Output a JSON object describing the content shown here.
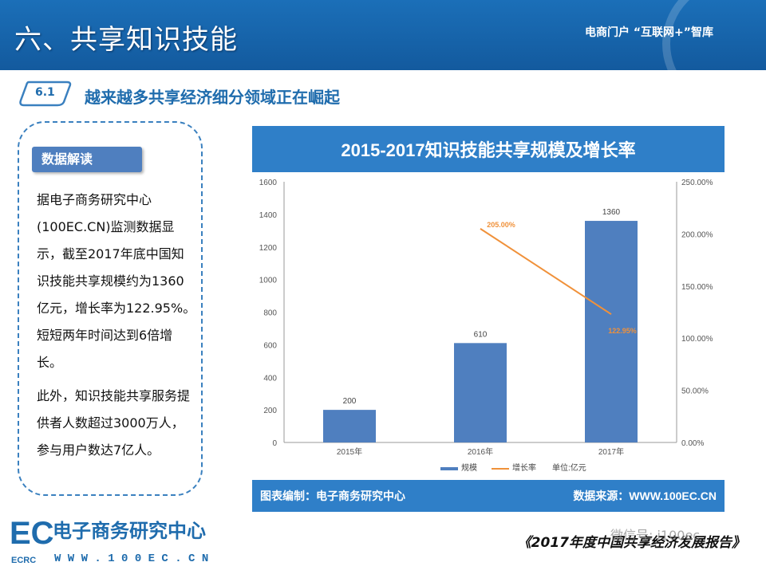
{
  "header": {
    "title": "六、共享知识技能",
    "brand": "电商门户 “互联网+”智库"
  },
  "section": {
    "badge": "6.1",
    "heading": "越来越多共享经济细分领域正在崛起"
  },
  "info": {
    "label": "数据解读",
    "paragraph1": "据电子商务研究中心(100EC.CN)监测数据显示，截至2017年底中国知识技能共享规模约为1360亿元，增长率为122.95%。短短两年时间达到6倍增长。",
    "paragraph2": "此外，知识技能共享服务提供者人数超过3000万人，参与用户数达7亿人。"
  },
  "colors": {
    "header": "#1b6fb8",
    "bar": "#4f7fbf",
    "line": "#f0913a",
    "banner": "#2f7fc8"
  },
  "chart_data": {
    "type": "bar",
    "title": "2015-2017知识技能共享规模及增长率",
    "categories": [
      "2015年",
      "2016年",
      "2017年"
    ],
    "series": [
      {
        "name": "规模",
        "type": "bar",
        "values": [
          200,
          610,
          1360
        ],
        "labels": [
          "200",
          "610",
          "1360"
        ],
        "axis": "left"
      },
      {
        "name": "增长率",
        "type": "line",
        "values": [
          null,
          205.0,
          122.95
        ],
        "labels": [
          "",
          "205.00%",
          "122.95%"
        ],
        "axis": "right"
      }
    ],
    "ylim": [
      0,
      1600
    ],
    "yticks": [
      "0",
      "200",
      "400",
      "600",
      "800",
      "1000",
      "1200",
      "1400",
      "1600"
    ],
    "y2lim": [
      0,
      250
    ],
    "y2ticks": [
      "0.00%",
      "50.00%",
      "100.00%",
      "150.00%",
      "200.00%",
      "250.00%"
    ],
    "unit_note": "单位:亿元",
    "legend_position": "bottom",
    "grid": false,
    "source_left": "图表编制：电子商务研究中心",
    "source_right": "数据来源：WWW.100EC.CN"
  },
  "footer": {
    "logo_mark": "EC",
    "logo_sub": "ECRC",
    "org_name": "电子商务研究中心",
    "url": "W W W . 1 0 0 E C . C N",
    "report": "《2017年度中国共享经济发展报告》",
    "watermark": "微信号: i100ec"
  }
}
